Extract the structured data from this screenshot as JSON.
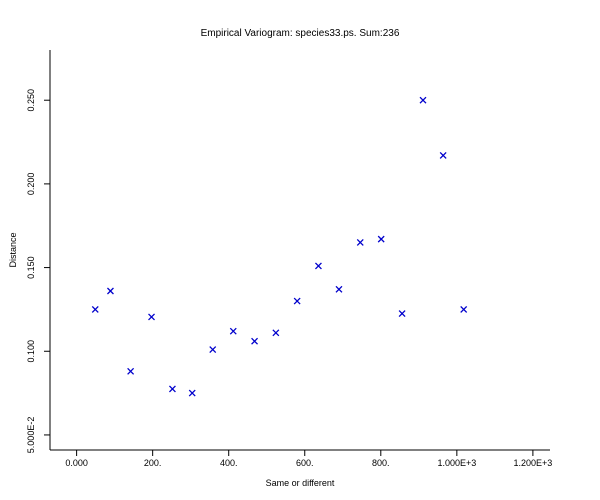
{
  "chart_data": {
    "type": "scatter",
    "title": "Empirical Variogram: species33.ps. Sum:236",
    "xlabel": "Same or different",
    "ylabel": "Distance",
    "xlim": [
      -70,
      1245
    ],
    "ylim": [
      0.041,
      0.28
    ],
    "x_ticks": [
      {
        "value": 0,
        "label": "0.000"
      },
      {
        "value": 200,
        "label": "200."
      },
      {
        "value": 400,
        "label": "400."
      },
      {
        "value": 600,
        "label": "600."
      },
      {
        "value": 800,
        "label": "800."
      },
      {
        "value": 1000,
        "label": "1.000E+3"
      },
      {
        "value": 1200,
        "label": "1.200E+3"
      }
    ],
    "y_ticks": [
      {
        "value": 0.05,
        "label": "5.000E-2"
      },
      {
        "value": 0.1,
        "label": "0.100"
      },
      {
        "value": 0.15,
        "label": "0.150"
      },
      {
        "value": 0.2,
        "label": "0.200"
      },
      {
        "value": 0.25,
        "label": "0.250"
      }
    ],
    "marker": "x",
    "marker_color": "#0000cc",
    "grid": false,
    "series": [
      {
        "points": [
          {
            "x": 49,
            "y": 0.125
          },
          {
            "x": 89,
            "y": 0.136
          },
          {
            "x": 142,
            "y": 0.088
          },
          {
            "x": 197,
            "y": 0.1205
          },
          {
            "x": 252,
            "y": 0.0775
          },
          {
            "x": 304,
            "y": 0.075
          },
          {
            "x": 358,
            "y": 0.101
          },
          {
            "x": 412,
            "y": 0.112
          },
          {
            "x": 468,
            "y": 0.106
          },
          {
            "x": 524,
            "y": 0.111
          },
          {
            "x": 580,
            "y": 0.13
          },
          {
            "x": 636,
            "y": 0.151
          },
          {
            "x": 690,
            "y": 0.137
          },
          {
            "x": 746,
            "y": 0.165
          },
          {
            "x": 801,
            "y": 0.167
          },
          {
            "x": 856,
            "y": 0.1225
          },
          {
            "x": 911,
            "y": 0.25
          },
          {
            "x": 964,
            "y": 0.217
          },
          {
            "x": 1018,
            "y": 0.125
          }
        ]
      }
    ]
  }
}
